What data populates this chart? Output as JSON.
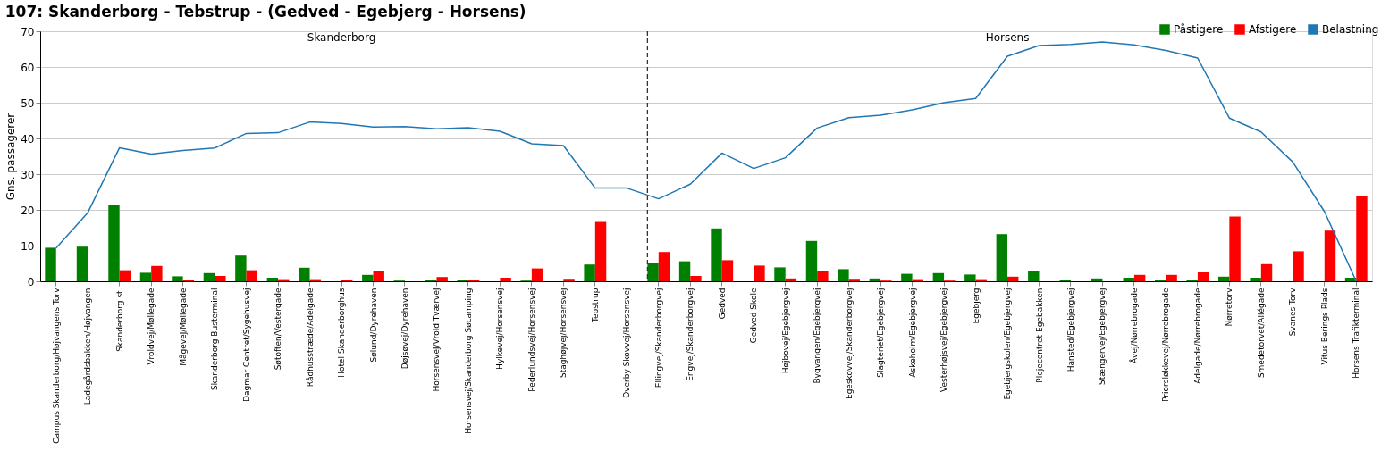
{
  "chart_data": {
    "type": "bar",
    "title": "107: Skanderborg - Tebstrup - (Gedved - Egebjerg - Horsens)",
    "ylabel": "Gns. passagerer",
    "categories": [
      "Campus Skanderborg/Højvangens Torv",
      "Ladegårdsbakken/Højvangen",
      "Skanderborg st.",
      "Vroldvej/Møllegade",
      "Mågevej/Møllegade",
      "Skanderborg Busterminal",
      "Dagmar Centret/Sygehusvej",
      "Søtoften/Vestergade",
      "Rådhusstræde/Adelgade",
      "Hotel Skanderborghus",
      "Sølund/Dyrehaven",
      "Døjsøvej/Dyrehaven",
      "Horsensvej/Vrold Tværvej",
      "Horsensvej/Skanderborg Søcamping",
      "Hylkevej/Horsensvej",
      "Pederlundsvej/Horsensvej",
      "Staghøjvej/Horsensvej",
      "Tebstrup",
      "Overby Skovvej/Horsensvej",
      "Ellingvej/Skanderborgvej",
      "Engvej/Skanderborgvej",
      "Gedved",
      "Gedved Skole",
      "Højbovej/Egebjergvej",
      "Bygvangen/Egebjergvej",
      "Egeskovvej/Skanderborgvej",
      "Slagteriet/Egebjergvej",
      "Askeholm/Egebjergvej",
      "Vesterhøjsvej/Egebjergvej",
      "Egebjerg",
      "Egebjergskolen/Egebjergvej",
      "Plejecentret Egebakken",
      "Hansted/Egebjergvej",
      "Stængervej/Egebjergvej",
      "Åvej/Nørrebrogade",
      "Priorsløkkevej/Nørrebrogade",
      "Adelgade/Nørrebrogade",
      "Nørretorv",
      "Smedetorvet/Allégade",
      "Svanes Torv",
      "Vitus Berings Plads",
      "Horsens Trafikterminal"
    ],
    "series": [
      {
        "name": "Påstigere",
        "color": "#008000",
        "values": [
          9.4,
          9.7,
          21.3,
          2.4,
          1.4,
          2.3,
          7.2,
          1.0,
          3.8,
          0,
          1.8,
          0.2,
          0.5,
          0.5,
          0,
          0.2,
          0,
          4.7,
          0,
          5.2,
          5.6,
          14.8,
          0,
          3.9,
          11.3,
          3.4,
          0.8,
          2.1,
          2.3,
          1.9,
          13.2,
          2.9,
          0.3,
          0.8,
          1.0,
          0.4,
          0.3,
          1.3,
          1.0,
          null,
          null,
          1.0
        ]
      },
      {
        "name": "Afstigere",
        "color": "#ff0000",
        "values": [
          0,
          0,
          3.1,
          4.3,
          0.5,
          1.5,
          3.1,
          0.6,
          0.6,
          0.5,
          2.8,
          0,
          1.2,
          0.3,
          1.0,
          3.6,
          0.7,
          16.6,
          0,
          8.2,
          1.5,
          5.9,
          4.4,
          0.8,
          2.9,
          0.7,
          0.2,
          0.6,
          0.2,
          0.6,
          1.3,
          0,
          0,
          0,
          1.8,
          1.8,
          2.5,
          18.1,
          4.8,
          8.4,
          14.2,
          24.0
        ]
      },
      {
        "name": "Belastning",
        "type": "line",
        "color": "#1f77b4",
        "values": [
          9.3,
          19.2,
          37.4,
          35.6,
          36.6,
          37.3,
          41.4,
          41.6,
          44.6,
          44.2,
          43.2,
          43.3,
          42.7,
          43.0,
          42.0,
          38.5,
          38.0,
          26.1,
          26.1,
          23.1,
          27.2,
          35.9,
          31.6,
          34.6,
          42.9,
          45.8,
          46.5,
          48.0,
          50.0,
          51.2,
          63.0,
          66.0,
          66.3,
          67.0,
          66.2,
          64.6,
          62.5,
          45.7,
          41.8,
          33.4,
          19.5,
          0
        ]
      }
    ],
    "ylim": [
      0,
      70
    ],
    "yticks": [
      0,
      10,
      20,
      30,
      40,
      50,
      60,
      70
    ],
    "grid": "y",
    "legend": "top right",
    "ref_lines": [
      {
        "axis": "x",
        "value": "Ellingvej/Skanderborgvej",
        "line_style": "dashed",
        "color": "#333333"
      }
    ],
    "annotations": [
      "Skanderborg",
      "Horsens"
    ]
  }
}
